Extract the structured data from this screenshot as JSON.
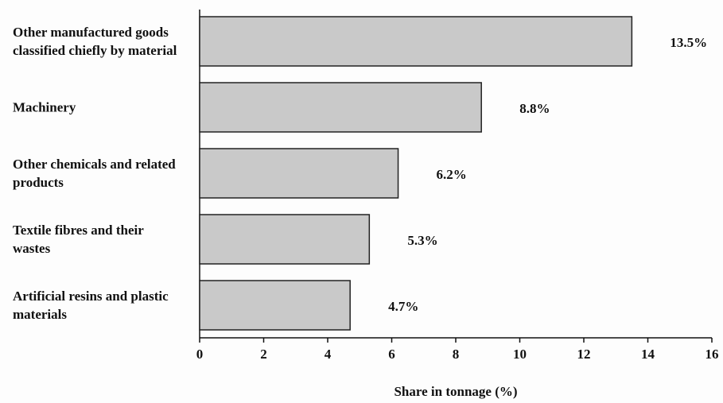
{
  "chart_data": {
    "type": "bar",
    "orientation": "horizontal",
    "categories": [
      "Other manufactured goods classified chiefly by material",
      "Machinery",
      "Other chemicals and related products",
      "Textile fibres and their wastes",
      "Artificial resins and plastic materials"
    ],
    "values": [
      13.5,
      8.8,
      6.2,
      5.3,
      4.7
    ],
    "value_labels": [
      "13.5%",
      "8.8%",
      "6.2%",
      "5.3%",
      "4.7%"
    ],
    "color": "#c9c9c9",
    "xlabel": "Share in tonnage (%)",
    "xlim": [
      0,
      16
    ],
    "xticks": [
      0,
      2,
      4,
      6,
      8,
      10,
      12,
      14,
      16
    ],
    "grid": false
  }
}
